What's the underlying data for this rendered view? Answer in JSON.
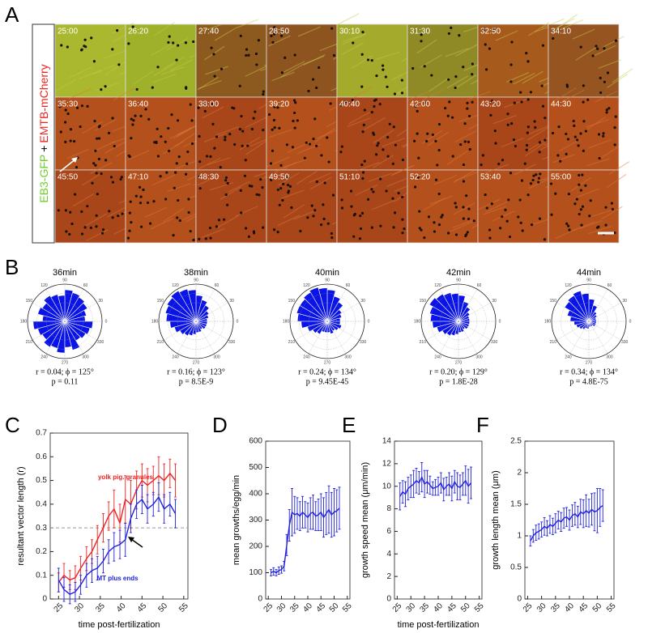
{
  "panel_labels": [
    "A",
    "B",
    "C",
    "D",
    "E",
    "F"
  ],
  "panel_a": {
    "green_label": "EB3-GFP",
    "plus_sign": "+",
    "red_label": "EMTB-mCherry",
    "timestamps": [
      "25:00",
      "26:20",
      "27:40",
      "28:50",
      "30:10",
      "31:30",
      "32:50",
      "34:10",
      "35:30",
      "36:40",
      "38:00",
      "39:20",
      "40:40",
      "42:00",
      "43:20",
      "44:30",
      "45:50",
      "47:10",
      "48:30",
      "49:50",
      "51:10",
      "52:20",
      "53:40",
      "55:00"
    ]
  },
  "panel_b": {
    "color": "#0a14e6",
    "rlim": [
      0,
      1
    ],
    "angle_labels": [
      0,
      30,
      60,
      90,
      120,
      150,
      180,
      210,
      240,
      270,
      300,
      330
    ],
    "plots": [
      {
        "title": "36min",
        "r_phi": "r = 0.04; ϕ = 125°",
        "p": "p = 0.11",
        "values": [
          0.55,
          0.6,
          0.7,
          0.75,
          0.8,
          0.85,
          0.7,
          0.75,
          0.8,
          0.7,
          0.75,
          0.6,
          0.85,
          0.75,
          0.7,
          0.8,
          0.75,
          0.85,
          0.7,
          0.8,
          0.6,
          0.65,
          0.7,
          0.75
        ]
      },
      {
        "title": "38min",
        "r_phi": "r = 0.16; ϕ = 123°",
        "p": "p = 8.5E-9",
        "values": [
          0.3,
          0.35,
          0.4,
          0.5,
          0.6,
          0.7,
          0.85,
          0.9,
          0.95,
          0.9,
          0.85,
          0.8,
          0.7,
          0.6,
          0.5,
          0.45,
          0.4,
          0.35,
          0.3,
          0.3,
          0.25,
          0.3,
          0.3,
          0.3
        ]
      },
      {
        "title": "40min",
        "r_phi": "r = 0.24; ϕ = 134°",
        "p": "p = 9.45E-45",
        "values": [
          0.35,
          0.4,
          0.45,
          0.6,
          0.7,
          0.85,
          0.9,
          0.95,
          0.9,
          0.85,
          0.85,
          0.8,
          0.7,
          0.55,
          0.45,
          0.4,
          0.3,
          0.3,
          0.3,
          0.35,
          0.3,
          0.35,
          0.4,
          0.35
        ]
      },
      {
        "title": "42min",
        "r_phi": "r = 0.20; ϕ = 129°",
        "p": "p = 1.8E-28",
        "values": [
          0.3,
          0.3,
          0.35,
          0.45,
          0.55,
          0.7,
          0.75,
          0.8,
          0.85,
          0.9,
          0.8,
          0.75,
          0.7,
          0.6,
          0.5,
          0.45,
          0.4,
          0.35,
          0.3,
          0.3,
          0.25,
          0.3,
          0.3,
          0.3
        ]
      },
      {
        "title": "44min",
        "r_phi": "r = 0.34; ϕ = 134°",
        "p": "p = 4.8E-75",
        "values": [
          0.2,
          0.2,
          0.25,
          0.3,
          0.45,
          0.6,
          0.75,
          0.85,
          0.8,
          0.75,
          0.6,
          0.5,
          0.4,
          0.35,
          0.3,
          0.25,
          0.2,
          0.2,
          0.15,
          0.15,
          0.15,
          0.2,
          0.2,
          0.2
        ]
      }
    ]
  },
  "chart_data": [
    {
      "type": "line",
      "ylabel": "resultant vector length (r)",
      "xlabel": "time post-fertilization",
      "xlim": [
        23,
        56
      ],
      "xticks": [
        25,
        30,
        35,
        40,
        45,
        50,
        55
      ],
      "ylim": [
        0,
        0.7
      ],
      "yticks": [
        0,
        0.1,
        0.2,
        0.3,
        0.4,
        0.5,
        0.6,
        0.7
      ],
      "reference_line": 0.3,
      "x": [
        25,
        26.3,
        27.7,
        29,
        30.3,
        31.7,
        33,
        34.3,
        35.7,
        37,
        38.3,
        39.7,
        41,
        42.3,
        43.7,
        45,
        46.3,
        47.7,
        49,
        50.3,
        51.7,
        53
      ],
      "series": [
        {
          "name": "yolk pig. granules",
          "color": "#ee2222",
          "values": [
            0.07,
            0.1,
            0.08,
            0.09,
            0.13,
            0.17,
            0.2,
            0.25,
            0.3,
            0.35,
            0.38,
            0.32,
            0.42,
            0.4,
            0.46,
            0.5,
            0.48,
            0.5,
            0.52,
            0.5,
            0.53,
            0.5
          ],
          "errors": [
            0.04,
            0.05,
            0.04,
            0.05,
            0.05,
            0.05,
            0.05,
            0.06,
            0.06,
            0.06,
            0.08,
            0.08,
            0.1,
            0.1,
            0.08,
            0.07,
            0.07,
            0.06,
            0.08,
            0.07,
            0.06,
            0.07
          ]
        },
        {
          "name": "MT plus ends",
          "color": "#2222dd",
          "values": [
            0.08,
            0.04,
            0.02,
            0.03,
            0.06,
            0.1,
            0.12,
            0.13,
            0.16,
            0.2,
            0.22,
            0.23,
            0.25,
            0.34,
            0.4,
            0.42,
            0.38,
            0.4,
            0.43,
            0.38,
            0.4,
            0.36
          ],
          "errors": [
            0.05,
            0.05,
            0.04,
            0.04,
            0.04,
            0.05,
            0.05,
            0.05,
            0.05,
            0.05,
            0.06,
            0.06,
            0.07,
            0.06,
            0.06,
            0.06,
            0.06,
            0.05,
            0.06,
            0.06,
            0.05,
            0.06
          ]
        }
      ]
    },
    {
      "type": "line",
      "ylabel": "mean growths/egg/min",
      "xlim": [
        24,
        56
      ],
      "xticks": [
        25,
        30,
        35,
        40,
        45,
        50,
        55
      ],
      "ylim": [
        0,
        600
      ],
      "yticks": [
        0,
        100,
        200,
        300,
        400,
        500,
        600
      ],
      "x": [
        26,
        27,
        28,
        29,
        30,
        31,
        32,
        33,
        34,
        35,
        36,
        37,
        38,
        39,
        40,
        41,
        42,
        43,
        44,
        45,
        46,
        47,
        48,
        49,
        50,
        51,
        52
      ],
      "series": [
        {
          "color": "#2222dd",
          "values": [
            100,
            105,
            100,
            108,
            112,
            125,
            205,
            280,
            330,
            320,
            325,
            315,
            330,
            320,
            310,
            325,
            330,
            315,
            320,
            330,
            310,
            325,
            340,
            320,
            330,
            335,
            345
          ],
          "errors": [
            12,
            14,
            12,
            14,
            14,
            18,
            40,
            60,
            90,
            70,
            60,
            55,
            60,
            50,
            55,
            60,
            65,
            55,
            60,
            70,
            75,
            80,
            90,
            85,
            90,
            80,
            80
          ]
        }
      ]
    },
    {
      "type": "line",
      "ylabel": "growth speed mean (μm/min)",
      "xlabel": "time post-fertilization",
      "xlim": [
        24,
        56
      ],
      "xticks": [
        25,
        30,
        35,
        40,
        45,
        50,
        55
      ],
      "ylim": [
        0,
        14
      ],
      "yticks": [
        0,
        2,
        4,
        6,
        8,
        10,
        12,
        14
      ],
      "x": [
        26,
        27,
        28,
        29,
        30,
        31,
        32,
        33,
        34,
        35,
        36,
        37,
        38,
        39,
        40,
        41,
        42,
        43,
        44,
        45,
        46,
        47,
        48,
        49,
        50,
        51,
        52
      ],
      "series": [
        {
          "color": "#2222dd",
          "values": [
            9.1,
            9.5,
            9.3,
            9.8,
            10,
            10.2,
            10.5,
            10.3,
            10.8,
            10.2,
            10.4,
            10.1,
            9.8,
            9.9,
            10,
            10.3,
            9.7,
            10,
            10.2,
            9.8,
            10.4,
            10,
            9.9,
            10.2,
            10.5,
            10,
            10.3
          ],
          "errors": [
            1.2,
            1,
            1.1,
            1,
            1,
            1.2,
            1.1,
            1,
            1.3,
            1.2,
            1,
            0.8,
            0.6,
            0.7,
            0.8,
            0.9,
            1,
            0.8,
            1,
            1.1,
            1,
            1.2,
            1.1,
            1,
            1.3,
            1.5,
            1.4
          ]
        }
      ]
    },
    {
      "type": "line",
      "ylabel": "growth length mean (μm)",
      "xlim": [
        24,
        56
      ],
      "xticks": [
        25,
        30,
        35,
        40,
        45,
        50,
        55
      ],
      "ylim": [
        0,
        2.5
      ],
      "yticks": [
        0,
        0.5,
        1,
        1.5,
        2,
        2.5
      ],
      "x": [
        26,
        27,
        28,
        29,
        30,
        31,
        32,
        33,
        34,
        35,
        36,
        37,
        38,
        39,
        40,
        41,
        42,
        43,
        44,
        45,
        46,
        47,
        48,
        49,
        50,
        51,
        52
      ],
      "series": [
        {
          "color": "#2222dd",
          "values": [
            0.92,
            1.0,
            1.05,
            1.07,
            1.1,
            1.15,
            1.12,
            1.18,
            1.15,
            1.2,
            1.25,
            1.22,
            1.28,
            1.3,
            1.25,
            1.32,
            1.35,
            1.3,
            1.38,
            1.35,
            1.4,
            1.36,
            1.42,
            1.38,
            1.4,
            1.45,
            1.48
          ],
          "errors": [
            0.08,
            0.1,
            0.12,
            0.12,
            0.12,
            0.14,
            0.12,
            0.14,
            0.13,
            0.15,
            0.14,
            0.15,
            0.16,
            0.15,
            0.16,
            0.17,
            0.18,
            0.17,
            0.2,
            0.22,
            0.25,
            0.22,
            0.25,
            0.3,
            0.35,
            0.3,
            0.25
          ]
        }
      ]
    }
  ]
}
